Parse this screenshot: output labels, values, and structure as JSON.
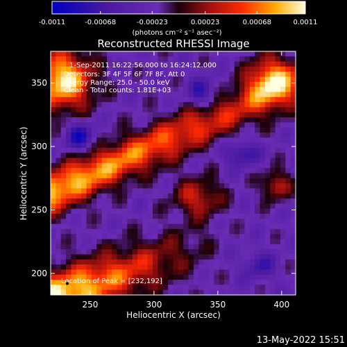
{
  "chart_data": {
    "type": "heatmap",
    "title": "Reconstructed RHESSI Image",
    "xlabel": "Heliocentric X (arcsec)",
    "ylabel": "Heliocentric Y (arcsec)",
    "xlim": [
      219,
      411
    ],
    "ylim": [
      183,
      375
    ],
    "x_ticks": [
      "250",
      "300",
      "350",
      "400"
    ],
    "y_ticks": [
      "200",
      "250",
      "300",
      "350"
    ],
    "colorbar": {
      "min": -0.0011,
      "max": 0.0011,
      "tick_labels": [
        "-0.0011",
        "-0.00068",
        "-0.00023",
        "0.00023",
        "0.00068",
        "0.0011"
      ],
      "unit_label": "(photons cm⁻² s⁻¹ asec⁻²)",
      "colors": [
        "#0000c0",
        "#5a1aa8",
        "#6b2bb5",
        "#2a0010",
        "#a01010",
        "#ff2a00",
        "#ffaa00",
        "#ffffe0"
      ]
    },
    "annotations": [
      "1-Sep-2011 16:22:56.000 to 16:24:12.000",
      "Detectors: 3F 4F 5F 6F 7F 8F, Att 0",
      "Energy Range: 25.0 - 50.0 keV",
      "Clean - Total counts: 1.81E+03"
    ],
    "peak_label": "Location of Peak = [232,192]",
    "peak_location": [
      232,
      192
    ],
    "grid": false
  },
  "footer": {
    "timestamp": "13-May-2022 15:51"
  }
}
